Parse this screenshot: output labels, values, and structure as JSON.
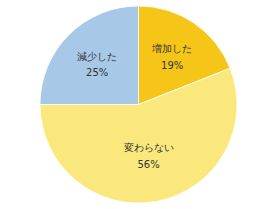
{
  "chart_data": {
    "type": "pie",
    "categories": [
      "増加した",
      "変わらない",
      "減少した"
    ],
    "values": [
      19,
      56,
      25
    ],
    "value_labels": [
      "19%",
      "56%",
      "25%"
    ],
    "colors": [
      "#F5C518",
      "#FAE87C",
      "#A8C8E8"
    ],
    "data_labels": true
  }
}
